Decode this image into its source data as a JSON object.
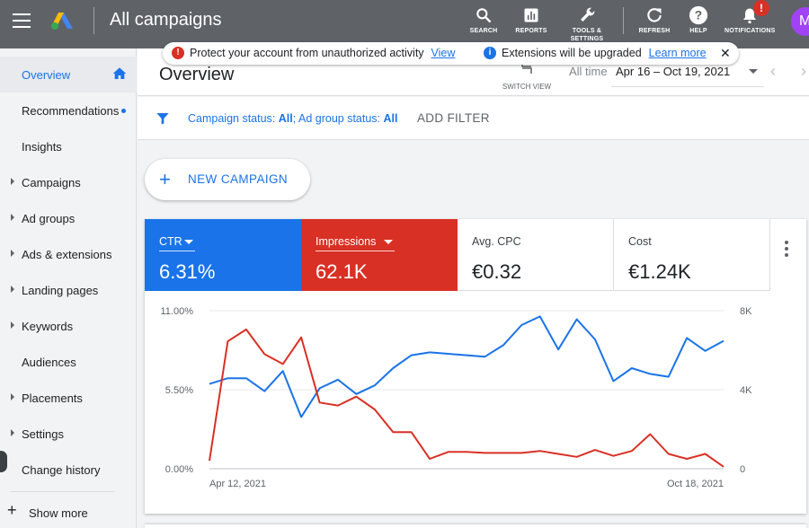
{
  "topbar": {
    "title": "All campaigns",
    "buttons": [
      {
        "label": "SEARCH",
        "icon": "search-icon"
      },
      {
        "label": "REPORTS",
        "icon": "reports-icon"
      },
      {
        "label": "TOOLS & SETTINGS",
        "icon": "wrench-icon"
      },
      {
        "label": "REFRESH",
        "icon": "refresh-icon"
      },
      {
        "label": "HELP",
        "icon": "help-icon"
      },
      {
        "label": "NOTIFICATIONS",
        "icon": "bell-icon"
      }
    ],
    "notification_badge": "!",
    "avatar_initial": "M"
  },
  "alert": {
    "message1": "Protect your account from unauthorized activity",
    "link1": "View",
    "message2": "Extensions will be upgraded",
    "link2": "Learn more",
    "close": "✕"
  },
  "sidebar": {
    "items": [
      {
        "label": "Overview",
        "active": true,
        "expandable": false
      },
      {
        "label": "Recommendations",
        "active": false,
        "expandable": false
      },
      {
        "label": "Insights",
        "active": false,
        "expandable": false
      },
      {
        "label": "Campaigns",
        "active": false,
        "expandable": true
      },
      {
        "label": "Ad groups",
        "active": false,
        "expandable": true
      },
      {
        "label": "Ads & extensions",
        "active": false,
        "expandable": true
      },
      {
        "label": "Landing pages",
        "active": false,
        "expandable": true
      },
      {
        "label": "Keywords",
        "active": false,
        "expandable": true
      },
      {
        "label": "Audiences",
        "active": false,
        "expandable": false
      },
      {
        "label": "Placements",
        "active": false,
        "expandable": true
      },
      {
        "label": "Settings",
        "active": false,
        "expandable": true
      },
      {
        "label": "Change history",
        "active": false,
        "expandable": false
      }
    ],
    "show_more": "Show more"
  },
  "header": {
    "title": "Overview",
    "switch_view": "SWITCH VIEW",
    "date_label": "All time",
    "date_range": "Apr 16 – Oct 19, 2021"
  },
  "filter": {
    "campaign_status_label": "Campaign status: ",
    "campaign_status_value": "All",
    "adgroup_status_label": "; Ad group status: ",
    "adgroup_status_value": "All",
    "add_filter": "ADD FILTER"
  },
  "new_campaign": "NEW CAMPAIGN",
  "metrics": [
    {
      "label": "CTR",
      "value": "6.31%",
      "color": "#1a73e8",
      "selected": true
    },
    {
      "label": "Impressions",
      "value": "62.1K",
      "color": "#d93025",
      "selected": true
    },
    {
      "label": "Avg. CPC",
      "value": "€0.32",
      "selected": false
    },
    {
      "label": "Cost",
      "value": "€1.24K",
      "selected": false
    }
  ],
  "chart_data": {
    "type": "line",
    "x_labels": [
      "Apr 12, 2021",
      "Oct 18, 2021"
    ],
    "y_left": {
      "ticks": [
        "11.00%",
        "5.50%",
        "0.00%"
      ],
      "range": [
        0,
        11
      ]
    },
    "y_right": {
      "ticks": [
        "8K",
        "4K",
        "0"
      ],
      "range": [
        0,
        8000
      ]
    },
    "series": [
      {
        "name": "CTR",
        "color": "#1a73e8",
        "axis": "left",
        "values": [
          5.9,
          6.3,
          6.3,
          5.4,
          6.8,
          3.6,
          5.6,
          6.2,
          5.2,
          5.8,
          7.0,
          7.9,
          8.1,
          8.0,
          7.9,
          7.8,
          8.6,
          10.0,
          10.6,
          8.3,
          10.4,
          9.0,
          6.1,
          7.0,
          6.6,
          6.4,
          9.1,
          8.2,
          8.9
        ]
      },
      {
        "name": "Impressions",
        "color": "#d93025",
        "axis": "right",
        "values": [
          400,
          6450,
          7050,
          5800,
          5300,
          6650,
          3350,
          3200,
          3650,
          3000,
          1850,
          1850,
          500,
          850,
          850,
          800,
          800,
          800,
          900,
          750,
          600,
          950,
          650,
          900,
          1750,
          750,
          500,
          750,
          100
        ]
      }
    ]
  }
}
